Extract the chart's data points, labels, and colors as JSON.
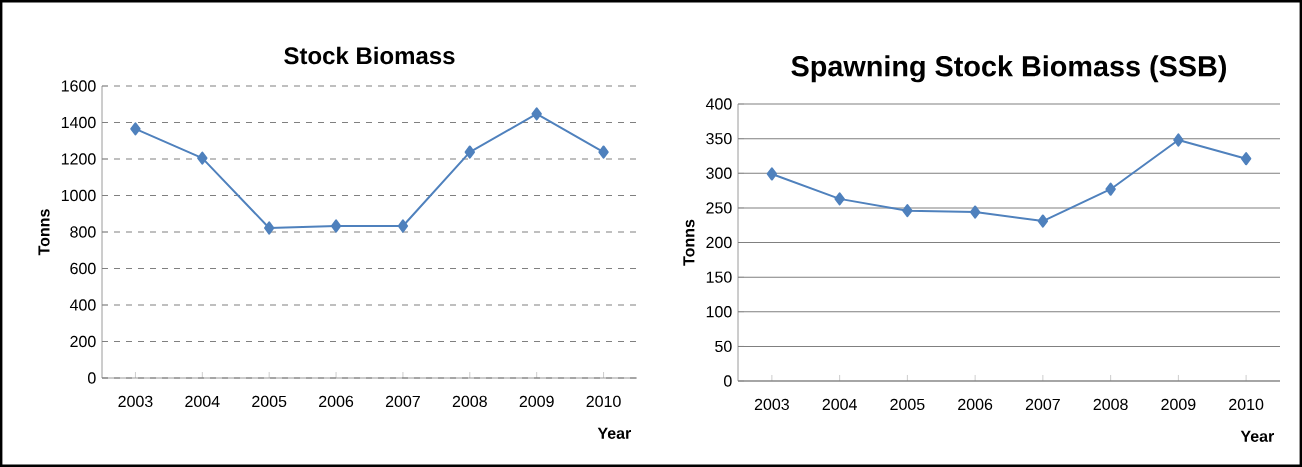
{
  "chart_data": [
    {
      "type": "line",
      "title": "Stock Biomass",
      "xlabel": "Year",
      "ylabel": "Tonns",
      "categories": [
        "2003",
        "2004",
        "2005",
        "2006",
        "2007",
        "2008",
        "2009",
        "2010"
      ],
      "series": [
        {
          "color": "#4f81bd",
          "values": [
            1365,
            1205,
            822,
            833,
            833,
            1238,
            1447,
            1238
          ]
        }
      ],
      "ylim": [
        0,
        1600
      ],
      "yticks": [
        0,
        200,
        400,
        600,
        800,
        1000,
        1200,
        1400,
        1600
      ],
      "grid": "y",
      "marker": "diamond",
      "line_style": "solid"
    },
    {
      "type": "line",
      "title": "Spawning Stock Biomass (SSB)",
      "xlabel": "Year",
      "ylabel": "Tonns",
      "categories": [
        "2003",
        "2004",
        "2005",
        "2006",
        "2007",
        "2008",
        "2009",
        "2010"
      ],
      "series": [
        {
          "color": "#4f81bd",
          "values": [
            299,
            263,
            246,
            244,
            231,
            277,
            348,
            321
          ]
        }
      ],
      "ylim": [
        0,
        400
      ],
      "yticks": [
        0,
        50,
        100,
        150,
        200,
        250,
        300,
        350,
        400
      ],
      "grid": "y",
      "marker": "diamond",
      "line_style": "solid"
    }
  ]
}
